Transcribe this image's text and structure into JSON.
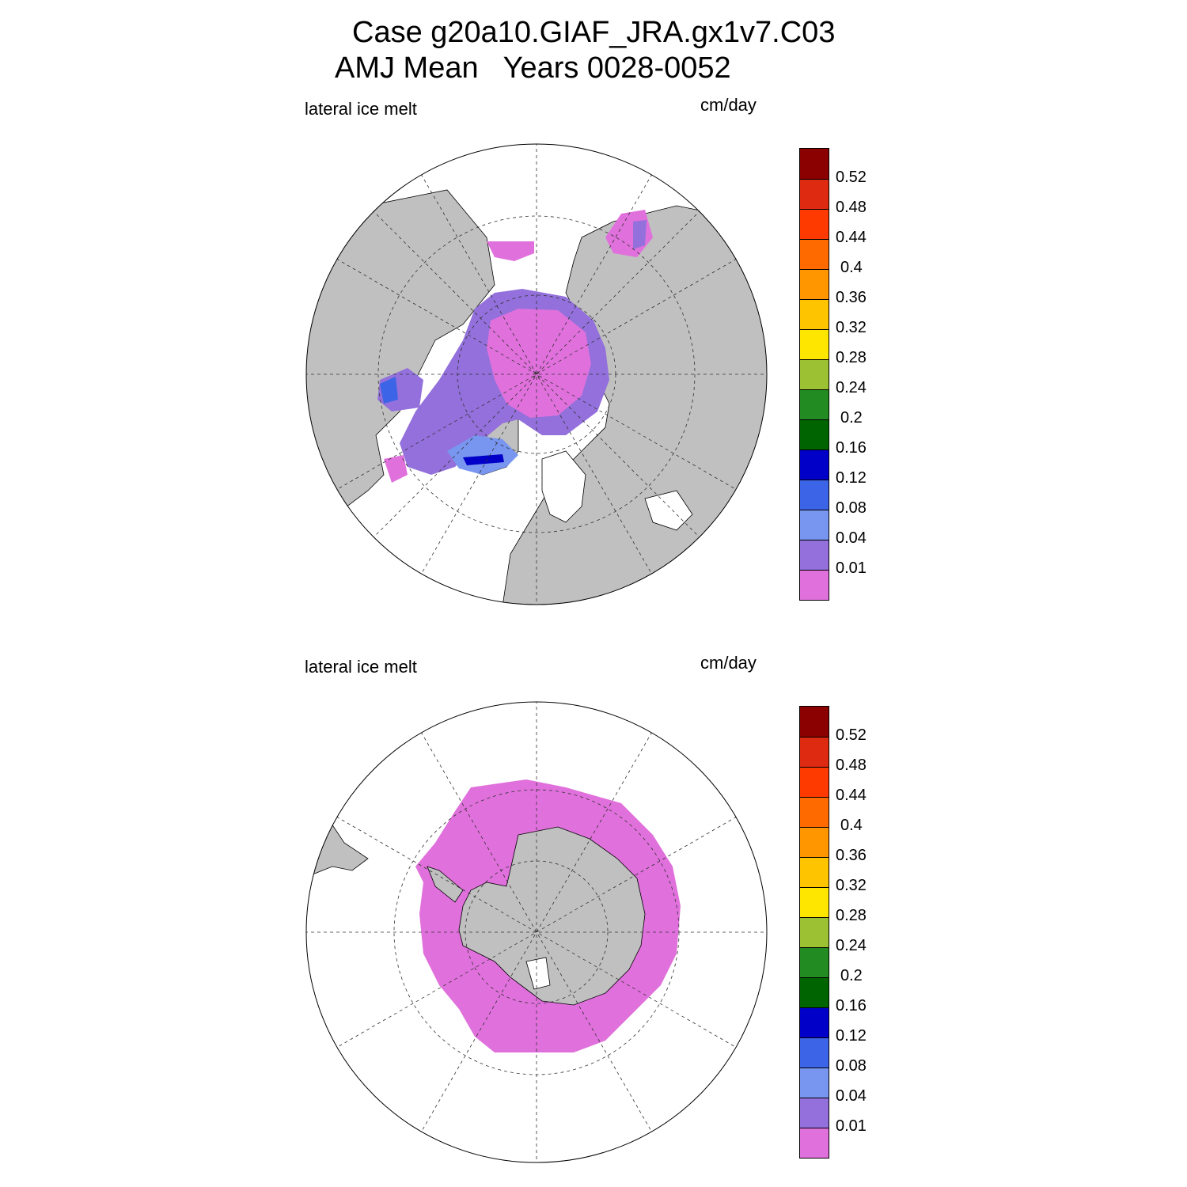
{
  "title": {
    "line1": "Case g20a10.GIAF_JRA.gx1v7.C03",
    "line2": "AMJ Mean   Years 0028-0052"
  },
  "panels": [
    {
      "id": "north",
      "variable_label": "lateral ice melt",
      "units": "cm/day",
      "hemisphere": "northern",
      "projection": "polar stereographic"
    },
    {
      "id": "south",
      "variable_label": "lateral ice melt",
      "units": "cm/day",
      "hemisphere": "southern",
      "projection": "polar stereographic"
    }
  ],
  "colorbar": {
    "levels": [
      "0.01",
      "0.04",
      "0.08",
      "0.12",
      "0.16",
      "0.2",
      "0.24",
      "0.28",
      "0.32",
      "0.36",
      "0.4",
      "0.44",
      "0.48",
      "0.52"
    ],
    "colors_top_to_bottom": [
      "#8b0000",
      "#dd2a10",
      "#ff3a00",
      "#ff6a00",
      "#ff9600",
      "#ffc400",
      "#ffe600",
      "#9cc133",
      "#228b22",
      "#006400",
      "#0000c8",
      "#3c64e6",
      "#7896f0",
      "#9370db",
      "#e070dc"
    ]
  },
  "colors": {
    "land": "#c0c0c0",
    "ocean": "#ffffff",
    "ice_low": "#e070dc",
    "ice_mid": "#9370db",
    "ice_blue": "#7896f0",
    "ice_dark": "#3c64e6"
  }
}
